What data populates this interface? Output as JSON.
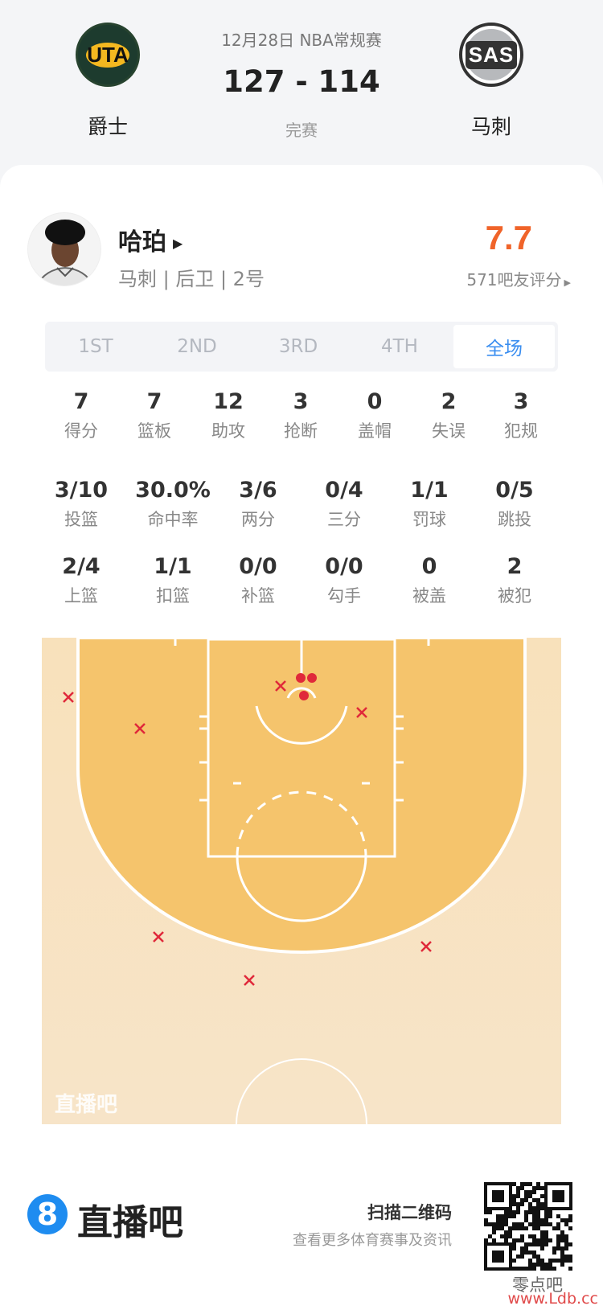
{
  "header": {
    "date_league": "12月28日 NBA常规赛",
    "score": "127 - 114",
    "status": "完赛",
    "home": {
      "abbr": "UTA",
      "name": "爵士"
    },
    "away": {
      "abbr": "SAS",
      "name": "马刺"
    }
  },
  "player": {
    "name": "哈珀",
    "info": "马刺 | 后卫 | 2号",
    "rating": "7.7",
    "rating_count": "571吧友评分",
    "rating_color": "#f0642a"
  },
  "tabs": [
    {
      "label": "1ST"
    },
    {
      "label": "2ND"
    },
    {
      "label": "3RD"
    },
    {
      "label": "4TH"
    },
    {
      "label": "全场",
      "active": true
    }
  ],
  "stats_row1": [
    {
      "value": "7",
      "label": "得分"
    },
    {
      "value": "7",
      "label": "篮板"
    },
    {
      "value": "12",
      "label": "助攻"
    },
    {
      "value": "3",
      "label": "抢断"
    },
    {
      "value": "0",
      "label": "盖帽"
    },
    {
      "value": "2",
      "label": "失误"
    },
    {
      "value": "3",
      "label": "犯规"
    }
  ],
  "stats_row2": [
    {
      "value": "3/10",
      "label": "投篮"
    },
    {
      "value": "30.0%",
      "label": "命中率"
    },
    {
      "value": "3/6",
      "label": "两分"
    },
    {
      "value": "0/4",
      "label": "三分"
    },
    {
      "value": "1/1",
      "label": "罚球"
    },
    {
      "value": "0/5",
      "label": "跳投"
    }
  ],
  "stats_row3": [
    {
      "value": "2/4",
      "label": "上篮"
    },
    {
      "value": "1/1",
      "label": "扣篮"
    },
    {
      "value": "0/0",
      "label": "补篮"
    },
    {
      "value": "0/0",
      "label": "勾手"
    },
    {
      "value": "0",
      "label": "被盖"
    },
    {
      "value": "2",
      "label": "被犯"
    }
  ],
  "shot_chart": {
    "watermark": "直播吧",
    "made_count": 3,
    "missed_count": 7,
    "made_marker": "filled-dot",
    "missed_marker": "x-mark",
    "marker_color": "#e0293a"
  },
  "footer": {
    "brand": "直播吧",
    "scan_title": "扫描二维码",
    "scan_sub": "查看更多体育赛事及资讯",
    "watermark_cn": "零点吧",
    "watermark_url": "www.Ldb.cc"
  }
}
